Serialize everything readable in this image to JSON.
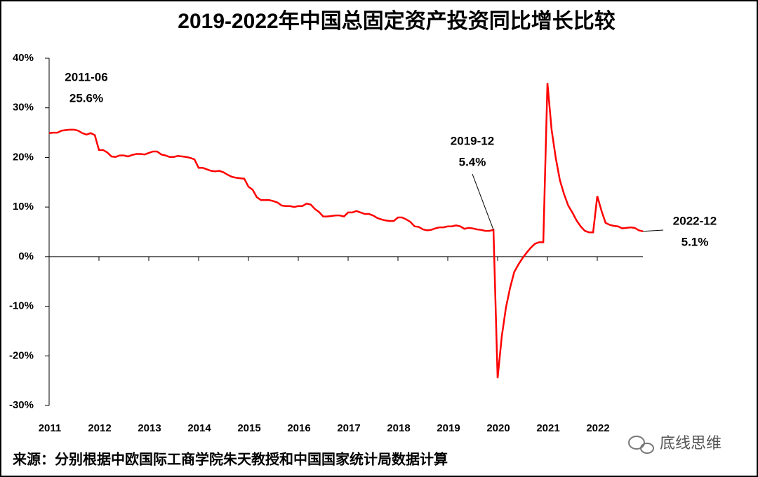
{
  "chart_data": {
    "type": "line",
    "title": "2019-2022年中国总固定资产投资同比增长比较",
    "source": "来源：分别根据中欧国际工商学院朱天教授和中国国家统计局数据计算",
    "watermark": "底线思维",
    "categories": [
      "2011",
      null,
      null,
      null,
      null,
      null,
      null,
      null,
      null,
      null,
      null,
      null,
      "2012",
      null,
      null,
      null,
      null,
      null,
      null,
      null,
      null,
      null,
      null,
      null,
      "2013",
      null,
      null,
      null,
      null,
      null,
      null,
      null,
      null,
      null,
      null,
      null,
      "2014",
      null,
      null,
      null,
      null,
      null,
      null,
      null,
      null,
      null,
      null,
      null,
      "2015",
      null,
      null,
      null,
      null,
      null,
      null,
      null,
      null,
      null,
      null,
      null,
      "2016",
      null,
      null,
      null,
      null,
      null,
      null,
      null,
      null,
      null,
      null,
      null,
      "2017",
      null,
      null,
      null,
      null,
      null,
      null,
      null,
      null,
      null,
      null,
      null,
      "2018",
      null,
      null,
      null,
      null,
      null,
      null,
      null,
      null,
      null,
      null,
      null,
      "2019",
      null,
      null,
      null,
      null,
      null,
      null,
      null,
      null,
      null,
      null,
      null,
      "2020",
      null,
      null,
      null,
      null,
      null,
      null,
      null,
      null,
      null,
      null,
      null,
      "2021",
      null,
      null,
      null,
      null,
      null,
      null,
      null,
      null,
      null,
      null,
      null,
      "2022",
      null,
      null,
      null,
      null,
      null,
      null,
      null,
      null,
      null,
      null,
      null
    ],
    "series": [
      {
        "color": "#ff0000",
        "values": [
          24.9,
          25.0,
          25.0,
          25.4,
          25.5,
          25.6,
          25.6,
          25.4,
          24.9,
          24.6,
          24.9,
          24.5,
          21.5,
          21.5,
          21.0,
          20.2,
          20.1,
          20.4,
          20.4,
          20.2,
          20.5,
          20.7,
          20.7,
          20.6,
          20.9,
          21.2,
          21.2,
          20.6,
          20.4,
          20.1,
          20.1,
          20.3,
          20.2,
          20.1,
          19.9,
          19.6,
          17.9,
          17.9,
          17.6,
          17.3,
          17.2,
          17.3,
          17.0,
          16.5,
          16.1,
          15.9,
          15.8,
          15.7,
          14.1,
          13.5,
          12.0,
          11.4,
          11.4,
          11.4,
          11.2,
          10.9,
          10.3,
          10.2,
          10.2,
          10.0,
          10.2,
          10.2,
          10.7,
          10.5,
          9.6,
          9.0,
          8.1,
          8.1,
          8.2,
          8.3,
          8.3,
          8.1,
          8.9,
          8.9,
          9.2,
          8.9,
          8.6,
          8.6,
          8.3,
          7.8,
          7.5,
          7.3,
          7.2,
          7.2,
          7.9,
          7.9,
          7.5,
          7.0,
          6.1,
          6.0,
          5.5,
          5.3,
          5.4,
          5.7,
          5.9,
          5.9,
          6.1,
          6.1,
          6.3,
          6.1,
          5.6,
          5.8,
          5.7,
          5.5,
          5.4,
          5.2,
          5.2,
          5.4,
          -24.5,
          -16.1,
          -10.3,
          -6.3,
          -3.1,
          -1.6,
          -0.3,
          0.8,
          1.8,
          2.6,
          2.9,
          2.9,
          35.0,
          25.6,
          19.9,
          15.4,
          12.6,
          10.3,
          8.9,
          7.3,
          6.1,
          5.2,
          4.9,
          4.9,
          12.2,
          9.3,
          6.8,
          6.4,
          6.2,
          6.1,
          5.7,
          5.8,
          5.9,
          5.8,
          5.3,
          5.1
        ]
      }
    ],
    "ylim": [
      -30,
      40
    ],
    "yticks": [
      {
        "value": -30,
        "label": "-30%"
      },
      {
        "value": -20,
        "label": "-20%"
      },
      {
        "value": -10,
        "label": "-10%"
      },
      {
        "value": 0,
        "label": "0%"
      },
      {
        "value": 10,
        "label": "10%"
      },
      {
        "value": 20,
        "label": "20%"
      },
      {
        "value": 30,
        "label": "30%"
      },
      {
        "value": 40,
        "label": "40%"
      }
    ],
    "annotations": [
      {
        "date": "2011-06",
        "text": "25.6%"
      },
      {
        "date": "2019-12",
        "text": "5.4%"
      },
      {
        "date": "2022-12",
        "text": "5.1%"
      }
    ]
  }
}
